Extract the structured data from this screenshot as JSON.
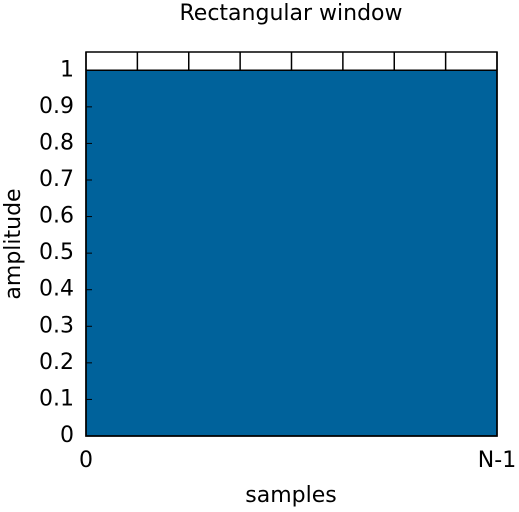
{
  "chart_data": {
    "type": "area",
    "title": "Rectangular window",
    "xlabel": "samples",
    "ylabel": "amplitude",
    "x": [
      0,
      8
    ],
    "values": [
      1,
      1
    ],
    "color": "#00629b",
    "xlim": [
      0,
      8
    ],
    "xticks": [
      0,
      {
        "value": 8,
        "label": "N-1"
      }
    ],
    "x_minor_ticks": [
      1,
      2,
      3,
      4,
      5,
      6,
      7
    ],
    "ylim": [
      0,
      1.05
    ],
    "yticks": [
      0,
      0.1,
      0.2,
      0.3,
      0.4,
      0.5,
      0.6,
      0.7,
      0.8,
      0.9,
      1
    ]
  }
}
